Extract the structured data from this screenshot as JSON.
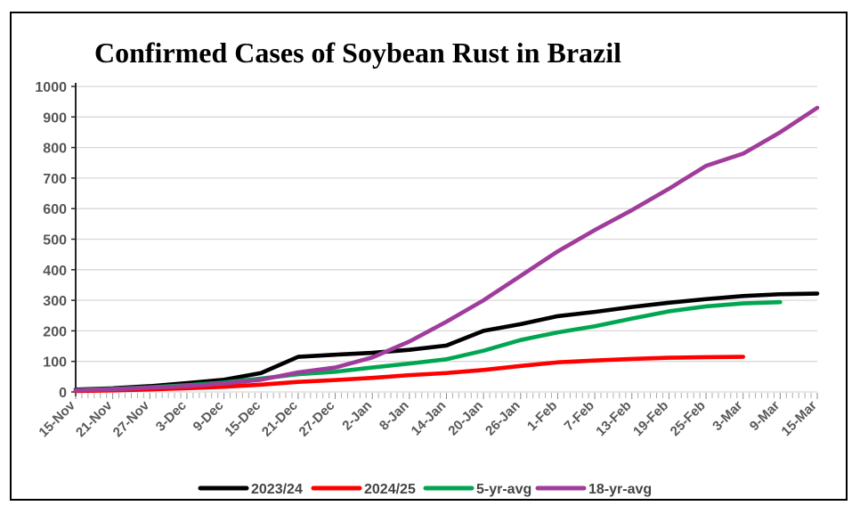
{
  "chart_data": {
    "type": "line",
    "title": "Confirmed Cases of Soybean Rust in Brazil",
    "xlabel": "",
    "ylabel": "",
    "ylim": [
      0,
      1000
    ],
    "y_ticks": [
      0,
      100,
      200,
      300,
      400,
      500,
      600,
      700,
      800,
      900,
      1000
    ],
    "grid": "horizontal",
    "legend_position": "bottom",
    "x_tick_labels": [
      "15-Nov",
      "21-Nov",
      "27-Nov",
      "3-Dec",
      "9-Dec",
      "15-Dec",
      "21-Dec",
      "27-Dec",
      "2-Jan",
      "8-Jan",
      "14-Jan",
      "20-Jan",
      "26-Jan",
      "1-Feb",
      "7-Feb",
      "13-Feb",
      "19-Feb",
      "25-Feb",
      "3-Mar",
      "9-Mar",
      "15-Mar"
    ],
    "minor_tick_divisions": 6,
    "series": [
      {
        "name": "2023/24",
        "color": "#000000",
        "values": [
          8,
          12,
          19,
          29,
          40,
          62,
          115,
          122,
          128,
          138,
          152,
          200,
          222,
          248,
          262,
          278,
          292,
          304,
          314,
          320,
          322
        ]
      },
      {
        "name": "2024/25",
        "color": "#FF0000",
        "values": [
          3,
          5,
          8,
          12,
          17,
          24,
          33,
          39,
          46,
          55,
          62,
          72,
          85,
          97,
          103,
          108,
          112,
          114,
          115,
          null,
          null
        ]
      },
      {
        "name": "5-yr-avg",
        "color": "#00A651",
        "values": [
          6,
          10,
          15,
          22,
          31,
          44,
          58,
          66,
          80,
          93,
          107,
          135,
          170,
          195,
          215,
          240,
          264,
          280,
          290,
          294,
          null
        ]
      },
      {
        "name": "18-yr-avg",
        "color": "#A03C9B",
        "values": [
          5,
          9,
          14,
          19,
          28,
          40,
          64,
          80,
          113,
          165,
          230,
          300,
          380,
          460,
          530,
          595,
          665,
          740,
          780,
          850,
          930
        ]
      }
    ]
  },
  "colors": {
    "grid": "#D8D8D8",
    "axis_line": "#262626",
    "minor_tick": "#ADADAD",
    "axis_text": "#595959",
    "background": "#FFFFFF",
    "border": "#000000"
  }
}
